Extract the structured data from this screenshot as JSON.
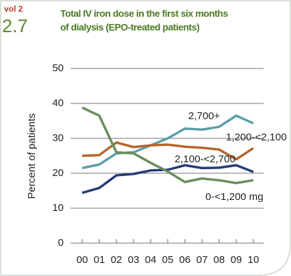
{
  "chart_data": {
    "type": "line",
    "volume": "vol 2",
    "section": "2.7",
    "title": [
      "Total IV iron dose in the first six months",
      "of dialysis (EPO-treated patients)"
    ],
    "y_label": "Percent of patients",
    "categories": [
      "00",
      "01",
      "02",
      "03",
      "04",
      "05",
      "06",
      "07",
      "08",
      "09",
      "10"
    ],
    "series": [
      {
        "name": "2,700+",
        "color": "#5b9ea6",
        "values": [
          21.5,
          22.5,
          25.7,
          26,
          28,
          30,
          32.8,
          32.5,
          33.3,
          36.5,
          34.3
        ]
      },
      {
        "name": "1,200-<2,100",
        "color": "#b5652a",
        "values": [
          25,
          25.2,
          28.8,
          27.5,
          28,
          28.2,
          27.6,
          27.3,
          26.8,
          24,
          27.2
        ]
      },
      {
        "name": "2,100-<2,700",
        "color": "#263a78",
        "values": [
          14.4,
          15.8,
          19.4,
          19.8,
          20.8,
          21,
          22.3,
          21.5,
          21.6,
          22.3,
          20.4
        ]
      },
      {
        "name": "0-<1,200 mg",
        "color": "#6b8c5c",
        "values": [
          38.8,
          36.5,
          26,
          25.7,
          23,
          20.5,
          17.5,
          18.5,
          18,
          17.2,
          18
        ]
      }
    ],
    "ylim": [
      0,
      50
    ],
    "yticks": [
      0,
      10,
      20,
      30,
      40,
      50
    ],
    "grid": true
  }
}
